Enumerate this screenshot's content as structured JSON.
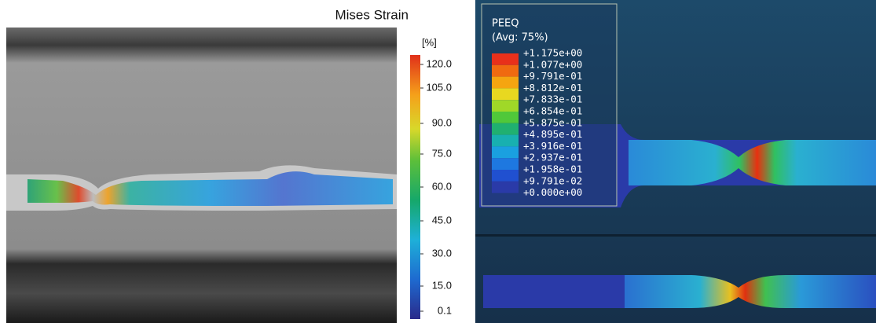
{
  "left": {
    "title": "Mises Strain",
    "unit": "[%]",
    "colorbar_labels": [
      "120.0",
      "105.0",
      "90.0",
      "75.0",
      "60.0",
      "45.0",
      "30.0",
      "15.0",
      "0.1"
    ]
  },
  "right": {
    "legend": {
      "title": "PEEQ",
      "subtitle": "(Avg: 75%)",
      "labels": [
        "+1.175e+00",
        "+1.077e+00",
        "+9.791e-01",
        "+8.812e-01",
        "+7.833e-01",
        "+6.854e-01",
        "+5.875e-01",
        "+4.895e-01",
        "+3.916e-01",
        "+2.937e-01",
        "+1.958e-01",
        "+9.791e-02",
        "+0.000e+00"
      ]
    }
  }
}
